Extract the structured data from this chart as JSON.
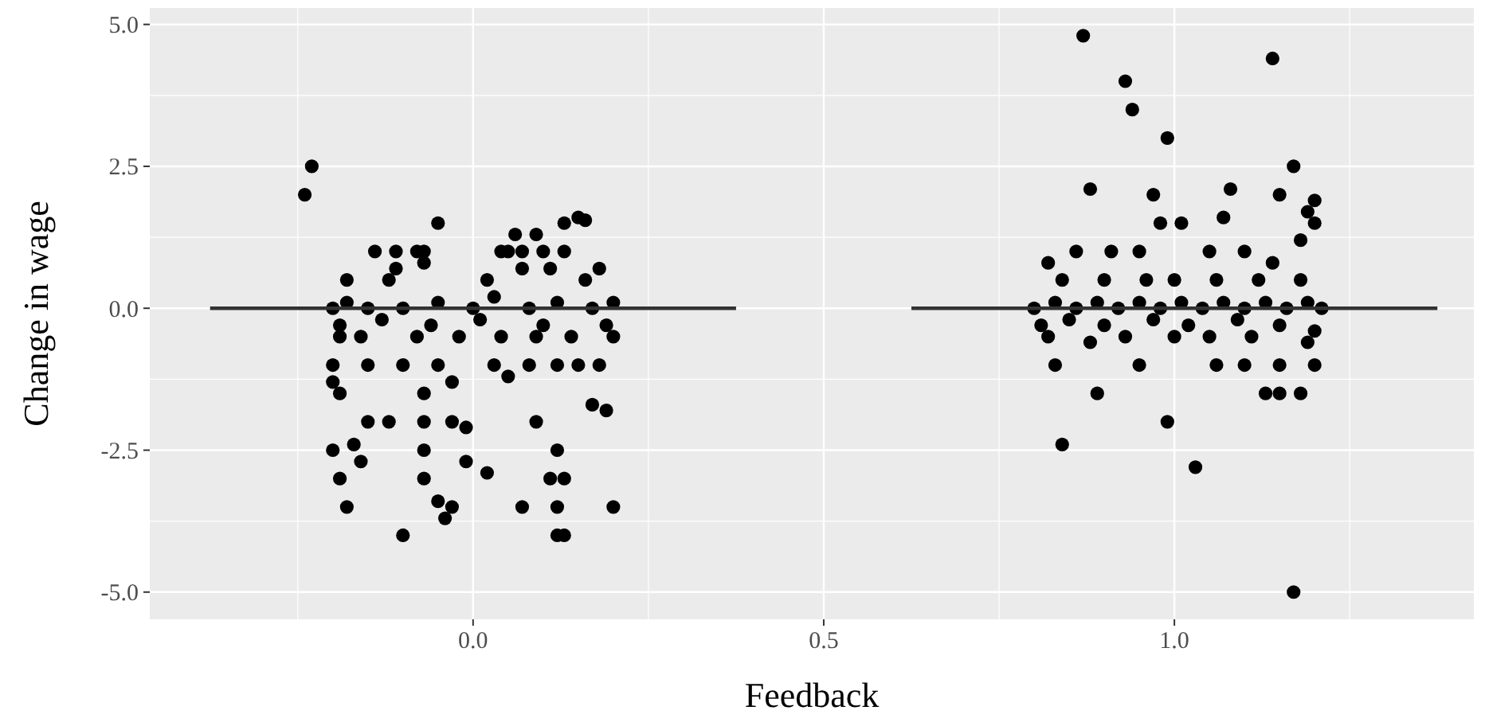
{
  "chart_data": {
    "type": "scatter",
    "xlabel": "Feedback",
    "ylabel": "Change in wage",
    "xlim": [
      -0.461,
      1.427
    ],
    "ylim": [
      -5.48,
      5.29
    ],
    "xticks": [
      {
        "value": 0,
        "label": "0.0"
      },
      {
        "value": 0.5,
        "label": "0.5"
      },
      {
        "value": 1,
        "label": "1.0"
      }
    ],
    "yticks": [
      {
        "value": -5,
        "label": "-5.0"
      },
      {
        "value": -2.5,
        "label": "-2.5"
      },
      {
        "value": 0,
        "label": "0.0"
      },
      {
        "value": 2.5,
        "label": "2.5"
      },
      {
        "value": 5,
        "label": "5.0"
      }
    ],
    "grid": true,
    "marker": "circle",
    "series": [
      {
        "color": "#000000",
        "x": [
          -0.23,
          -0.24,
          -0.05,
          0.06,
          0.13,
          0.15,
          0.16,
          0.09,
          0.04,
          -0.14,
          -0.11,
          -0.07,
          -0.08,
          0.05,
          0.07,
          0.1,
          0.13,
          -0.11,
          -0.07,
          0.07,
          0.11,
          0.18,
          -0.18,
          -0.12,
          0.02,
          0.16,
          -0.2,
          -0.18,
          -0.15,
          -0.1,
          -0.05,
          0,
          0.03,
          0.08,
          0.12,
          0.17,
          0.2,
          -0.19,
          -0.13,
          -0.06,
          0.01,
          0.1,
          0.19,
          -0.19,
          -0.16,
          -0.08,
          -0.02,
          0.04,
          0.09,
          0.14,
          0.2,
          -0.2,
          -0.15,
          -0.1,
          -0.05,
          0.03,
          0.08,
          0.12,
          0.15,
          0.18,
          -0.2,
          -0.19,
          -0.07,
          -0.03,
          0.05,
          0.17,
          0.19,
          -0.15,
          -0.12,
          -0.07,
          -0.03,
          -0.01,
          0.09,
          -0.2,
          -0.17,
          -0.07,
          -0.01,
          0.12,
          -0.19,
          -0.16,
          -0.07,
          0.02,
          0.11,
          0.13,
          -0.18,
          -0.05,
          0.07,
          0.12,
          0.2,
          -0.1,
          -0.03,
          -0.04,
          0.13,
          0.12
        ],
        "values": [
          2.5,
          2.0,
          1.5,
          1.3,
          1.5,
          1.6,
          1.55,
          1.3,
          1.0,
          1.0,
          1.0,
          1.0,
          1.0,
          1.0,
          1.0,
          1.0,
          1.0,
          0.7,
          0.8,
          0.7,
          0.7,
          0.7,
          0.5,
          0.5,
          0.5,
          0.5,
          0,
          0.1,
          0,
          0,
          0.1,
          0,
          0.2,
          0,
          0.1,
          0,
          0.1,
          -0.3,
          -0.2,
          -0.3,
          -0.2,
          -0.3,
          -0.3,
          -0.5,
          -0.5,
          -0.5,
          -0.5,
          -0.5,
          -0.5,
          -0.5,
          -0.5,
          -1.0,
          -1.0,
          -1.0,
          -1.0,
          -1.0,
          -1.0,
          -1.0,
          -1.0,
          -1.0,
          -1.3,
          -1.5,
          -1.5,
          -1.3,
          -1.2,
          -1.7,
          -1.8,
          -2.0,
          -2.0,
          -2.0,
          -2.0,
          -2.1,
          -2.0,
          -2.5,
          -2.4,
          -2.5,
          -2.7,
          -2.5,
          -3.0,
          -2.7,
          -3.0,
          -2.9,
          -3.0,
          -3.0,
          -3.5,
          -3.4,
          -3.5,
          -3.5,
          -3.5,
          -4.0,
          -3.5,
          -3.7,
          -4.0,
          -4.0
        ]
      },
      {
        "color": "#000000",
        "x": [
          0.87,
          0.93,
          0.94,
          0.99,
          1.14,
          0.88,
          1.17,
          1.15,
          1.2,
          1.19,
          1.2,
          0.97,
          0.98,
          1.01,
          1.08,
          1.07,
          0.82,
          0.86,
          0.91,
          0.95,
          1.05,
          1.1,
          1.18,
          1.14,
          0.84,
          0.9,
          0.96,
          1.0,
          1.06,
          1.12,
          1.18,
          0.8,
          0.83,
          0.86,
          0.89,
          0.92,
          0.95,
          0.98,
          1.01,
          1.04,
          1.07,
          1.1,
          1.13,
          1.16,
          1.19,
          1.21,
          0.81,
          0.85,
          0.9,
          0.97,
          1.02,
          1.09,
          1.15,
          1.2,
          0.82,
          0.88,
          0.93,
          1.0,
          1.05,
          1.11,
          1.19,
          0.83,
          0.95,
          1.06,
          1.1,
          1.15,
          1.2,
          0.89,
          1.13,
          1.15,
          1.18,
          0.99,
          0.84,
          1.03,
          1.17
        ],
        "values": [
          4.8,
          4.0,
          3.5,
          3.0,
          4.4,
          2.1,
          2.5,
          2.0,
          1.9,
          1.7,
          1.5,
          2.0,
          1.5,
          1.5,
          2.1,
          1.6,
          0.8,
          1.0,
          1.0,
          1.0,
          1.0,
          1.0,
          1.2,
          0.8,
          0.5,
          0.5,
          0.5,
          0.5,
          0.5,
          0.5,
          0.5,
          0,
          0.1,
          0,
          0.1,
          0,
          0.1,
          0,
          0.1,
          0,
          0.1,
          0,
          0.1,
          0,
          0.1,
          0,
          -0.3,
          -0.2,
          -0.3,
          -0.2,
          -0.3,
          -0.2,
          -0.3,
          -0.4,
          -0.5,
          -0.6,
          -0.5,
          -0.5,
          -0.5,
          -0.5,
          -0.6,
          -1.0,
          -1.0,
          -1.0,
          -1.0,
          -1.0,
          -1.0,
          -1.5,
          -1.5,
          -1.5,
          -1.5,
          -2.0,
          -2.4,
          -2.8,
          -5.0
        ]
      },
      {
        "type": "line",
        "marker": "none",
        "color": "#333333",
        "x": [
          -0.375,
          0.375
        ],
        "values": [
          0,
          0
        ]
      },
      {
        "type": "line",
        "marker": "none",
        "color": "#333333",
        "x": [
          0.625,
          1.375
        ],
        "values": [
          0,
          0
        ]
      }
    ]
  }
}
